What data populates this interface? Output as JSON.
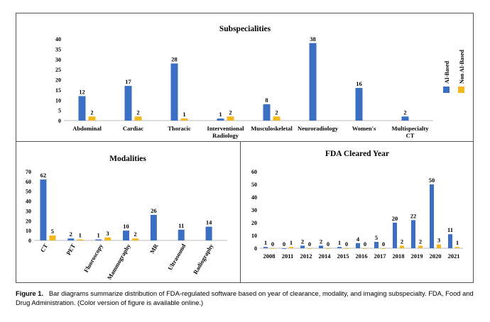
{
  "colors": {
    "ai": "#3A6FC4",
    "non_ai": "#F2B71C"
  },
  "legend": {
    "ai_label": "AI-Based",
    "non_ai_label": "Non AI-Based"
  },
  "caption": {
    "label": "Figure 1.",
    "text": "Bar diagrams summarize distribution of FDA-regulated software based on year of clearance, modality, and imaging subspecialty. FDA, Food and Drug Administration. (Color version of figure is available online.)"
  },
  "chart_data": [
    {
      "type": "bar",
      "title": "Subspecialities",
      "categories": [
        "Abdominal",
        "Cardiac",
        "Thoracic",
        "Interventional Radiology",
        "Musculoskeletal",
        "Neuroradiology",
        "Women's",
        "Multispecialty CT"
      ],
      "series": [
        {
          "name": "AI-Based",
          "values": [
            12,
            17,
            28,
            1,
            8,
            38,
            16,
            2
          ]
        },
        {
          "name": "Non AI-Based",
          "values": [
            2,
            2,
            1,
            2,
            2,
            null,
            null,
            null
          ]
        }
      ],
      "ylim": [
        0,
        40
      ],
      "yticks": [
        0,
        5,
        10,
        15,
        20,
        25,
        30,
        35,
        40
      ],
      "legend_position": "right"
    },
    {
      "type": "bar",
      "title": "Modalities",
      "categories": [
        "CT",
        "PET",
        "Fluoroscopy",
        "Mammography",
        "MR",
        "Ultrasound",
        "Radiography"
      ],
      "series": [
        {
          "name": "AI-Based",
          "values": [
            62,
            2,
            1,
            10,
            26,
            11,
            14
          ]
        },
        {
          "name": "Non AI-Based",
          "values": [
            5,
            1,
            3,
            2,
            null,
            null,
            null
          ]
        }
      ],
      "ylim": [
        0,
        70
      ],
      "yticks": [
        0,
        10,
        20,
        30,
        40,
        50,
        60,
        70
      ]
    },
    {
      "type": "bar",
      "title": "FDA Cleared Year",
      "categories": [
        "2008",
        "2011",
        "2012",
        "2014",
        "2015",
        "2016",
        "2017",
        "2018",
        "2019",
        "2020",
        "2021"
      ],
      "series": [
        {
          "name": "AI-Based",
          "values": [
            1,
            0,
            2,
            2,
            1,
            4,
            5,
            20,
            22,
            50,
            11
          ]
        },
        {
          "name": "Non AI-Based",
          "values": [
            0,
            1,
            0,
            0,
            0,
            0,
            0,
            2,
            2,
            3,
            1
          ]
        }
      ],
      "ylim": [
        0,
        60
      ],
      "yticks": [
        0,
        10,
        20,
        30,
        40,
        50,
        60
      ]
    }
  ]
}
